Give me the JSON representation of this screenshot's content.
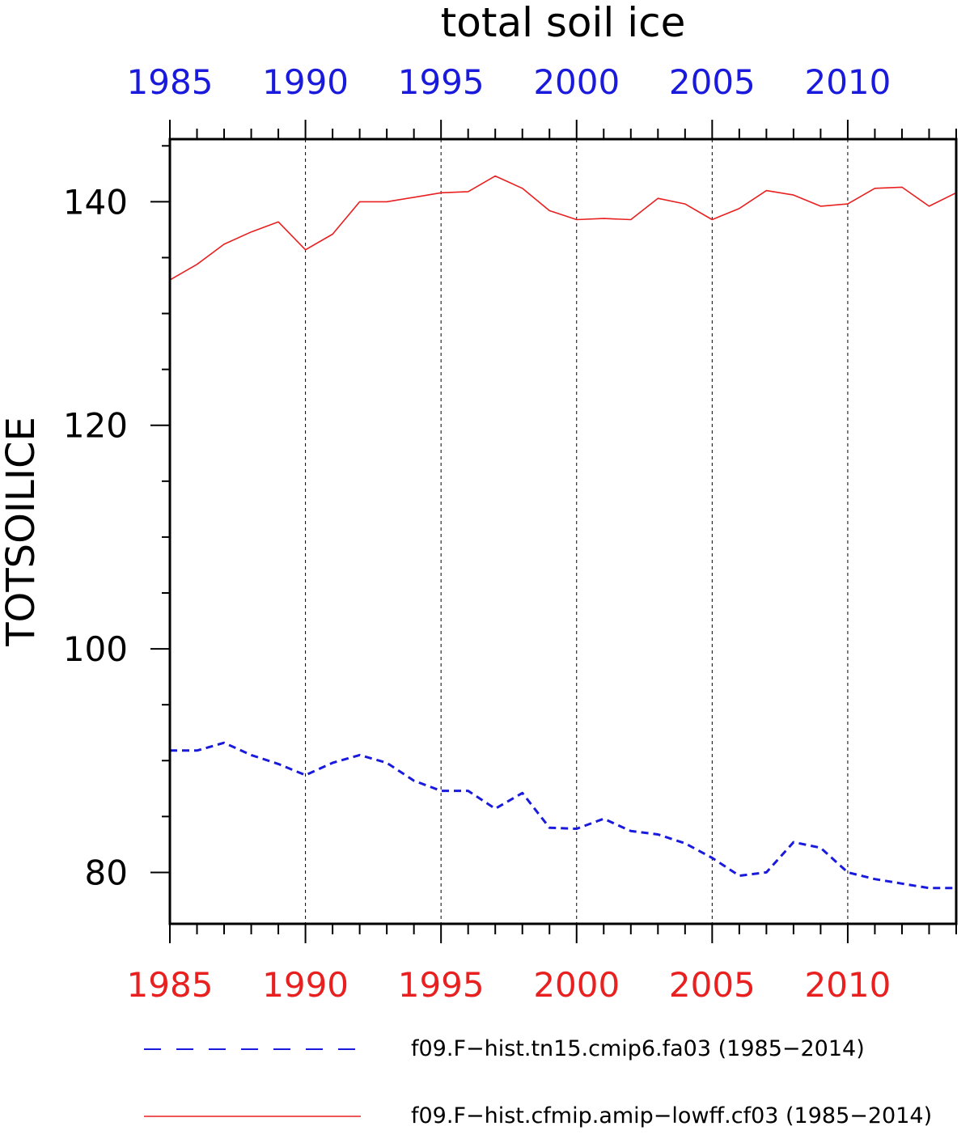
{
  "chart_data": {
    "type": "line",
    "title": "total soil ice",
    "ylabel": "TOTSOILICE",
    "xlim": [
      1985,
      2014
    ],
    "ylim": [
      75.4,
      145.6
    ],
    "x_ticks": [
      1985,
      1990,
      1995,
      2000,
      2005,
      2010
    ],
    "y_ticks": [
      80,
      100,
      120,
      140
    ],
    "grid": "vertical dashed at labeled years",
    "top_axis_color": "#1a1adc",
    "bottom_axis_color": "#e82020",
    "x": [
      1985,
      1986,
      1987,
      1988,
      1989,
      1990,
      1991,
      1992,
      1993,
      1994,
      1995,
      1996,
      1997,
      1998,
      1999,
      2000,
      2001,
      2002,
      2003,
      2004,
      2005,
      2006,
      2007,
      2008,
      2009,
      2010,
      2011,
      2012,
      2013,
      2014
    ],
    "series": [
      {
        "name": "f09.F−hist.tn15.cmip6.fa03 (1985−2014)",
        "color": "#1a1adc",
        "style": "dashed",
        "values": [
          90.9,
          90.9,
          91.6,
          90.5,
          89.7,
          88.7,
          89.8,
          90.5,
          89.8,
          88.2,
          87.3,
          87.3,
          85.7,
          87.1,
          84.0,
          83.9,
          84.8,
          83.7,
          83.4,
          82.6,
          81.3,
          79.7,
          80.0,
          82.7,
          82.2,
          80.0,
          79.4,
          79.0,
          78.6,
          78.6
        ]
      },
      {
        "name": "f09.F−hist.cfmip.amip−lowff.cf03 (1985−2014)",
        "color": "#e82020",
        "style": "solid",
        "values": [
          133.0,
          134.4,
          136.2,
          137.3,
          138.2,
          135.7,
          137.1,
          140.0,
          140.0,
          140.4,
          140.8,
          140.9,
          142.3,
          141.2,
          139.2,
          138.4,
          138.5,
          138.4,
          140.3,
          139.8,
          138.4,
          139.4,
          141.0,
          140.6,
          139.6,
          139.8,
          141.2,
          141.3,
          139.6,
          140.8
        ]
      }
    ]
  }
}
